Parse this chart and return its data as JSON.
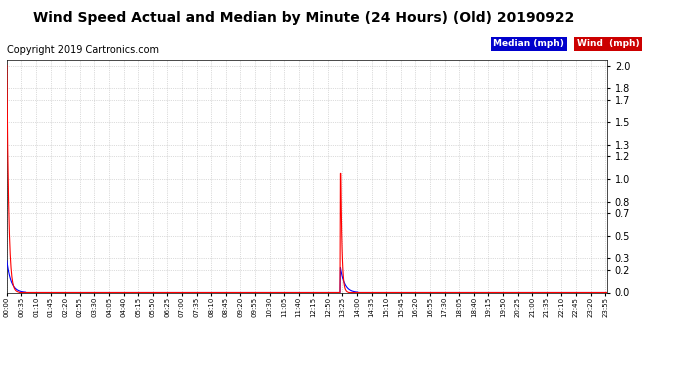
{
  "title": "Wind Speed Actual and Median by Minute (24 Hours) (Old) 20190922",
  "copyright": "Copyright 2019 Cartronics.com",
  "yticks": [
    0.0,
    0.2,
    0.3,
    0.5,
    0.7,
    0.8,
    1.0,
    1.2,
    1.3,
    1.5,
    1.7,
    1.8,
    2.0
  ],
  "ymin": 0.0,
  "ymax": 2.05,
  "legend_median_label": "Median (mph)",
  "legend_wind_label": "Wind  (mph)",
  "median_color": "#0000ff",
  "wind_color": "#ff0000",
  "legend_median_bg": "#0000cc",
  "legend_wind_bg": "#cc0000",
  "background_color": "#ffffff",
  "grid_color": "#bbbbbb",
  "title_fontsize": 10,
  "copyright_fontsize": 7,
  "tick_interval_minutes": 35
}
